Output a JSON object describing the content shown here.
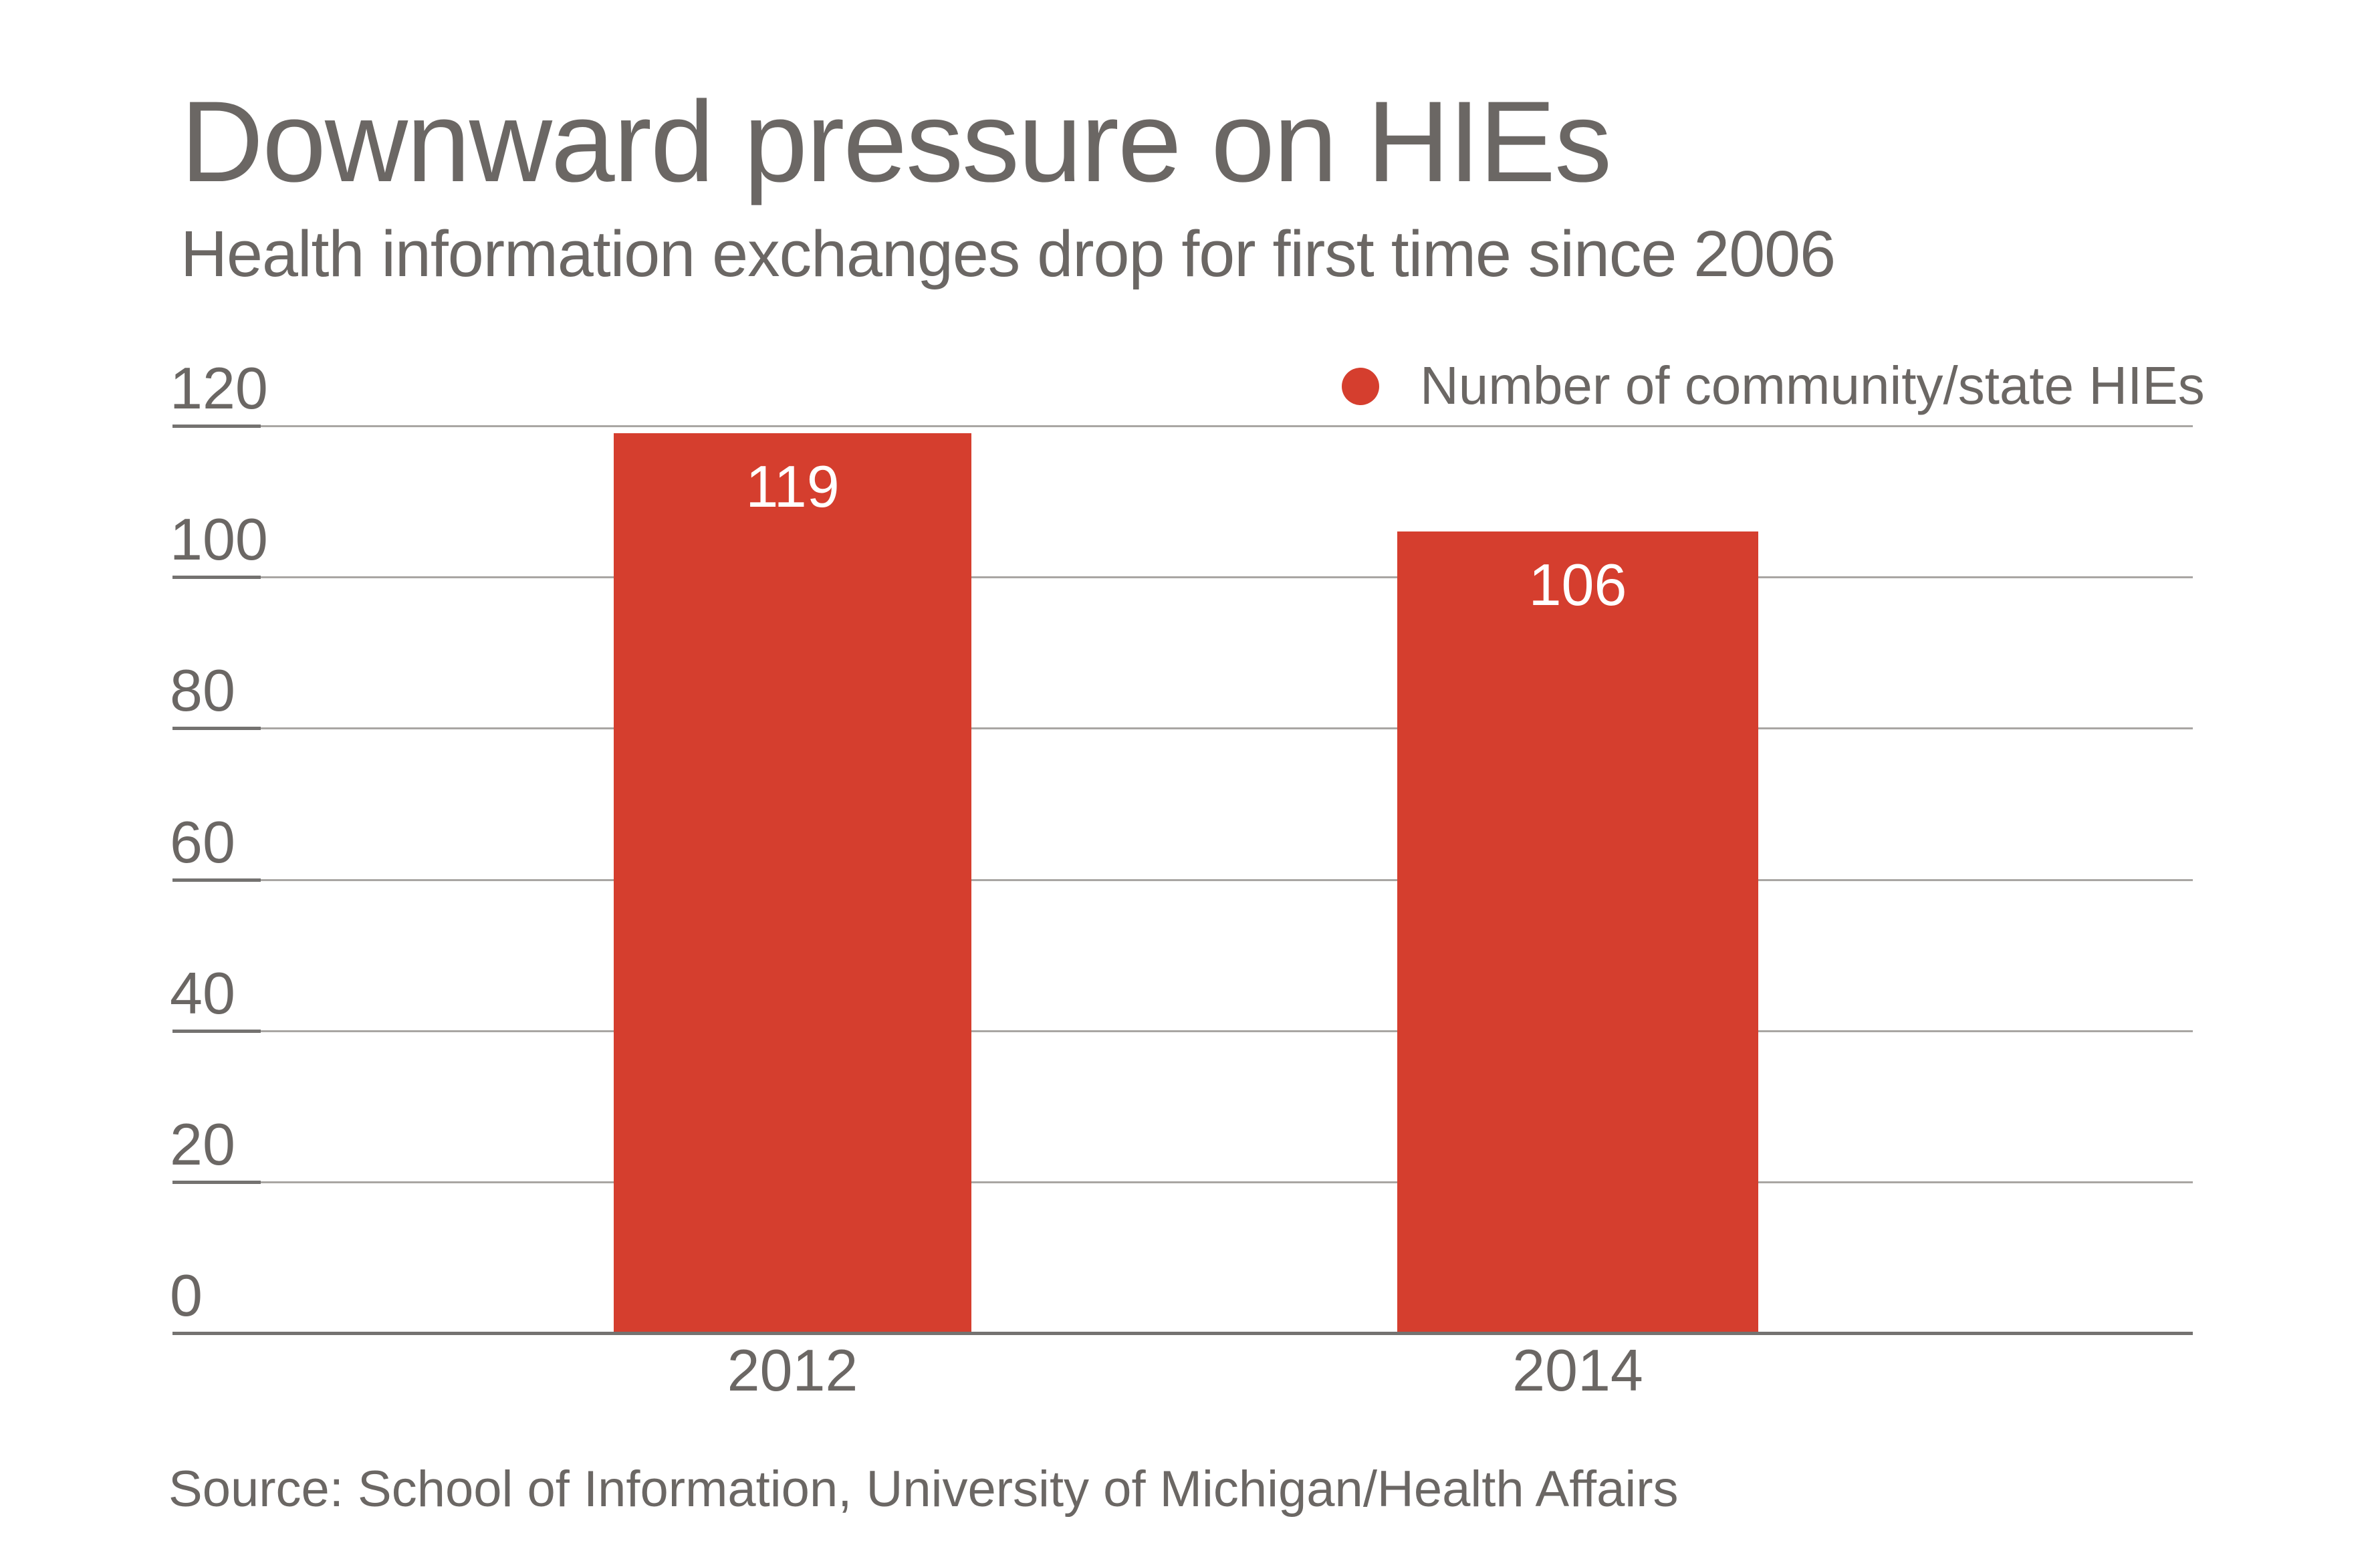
{
  "chart_data": {
    "type": "bar",
    "title": "Downward pressure on HIEs",
    "subtitle": "Health information exchanges drop for first time since 2006",
    "categories": [
      "2012",
      "2014"
    ],
    "values": [
      119,
      106
    ],
    "series_label": "Number of community/state HIEs",
    "source": "Source: School of Information, University of Michigan/Health Affairs",
    "xlabel": "",
    "ylabel": "",
    "ylim": [
      0,
      120
    ],
    "yticks": [
      120,
      100,
      80,
      60,
      40,
      20,
      0
    ],
    "grid": true,
    "legend_position": "top-right",
    "colors": {
      "bar": "#d53e2e",
      "legend_dot": "#d53e2e",
      "text": "#6b6764",
      "value_label": "#ffffff",
      "gridline": "#a9a6a3",
      "axis": "#747270",
      "background": "#ffffff"
    }
  }
}
